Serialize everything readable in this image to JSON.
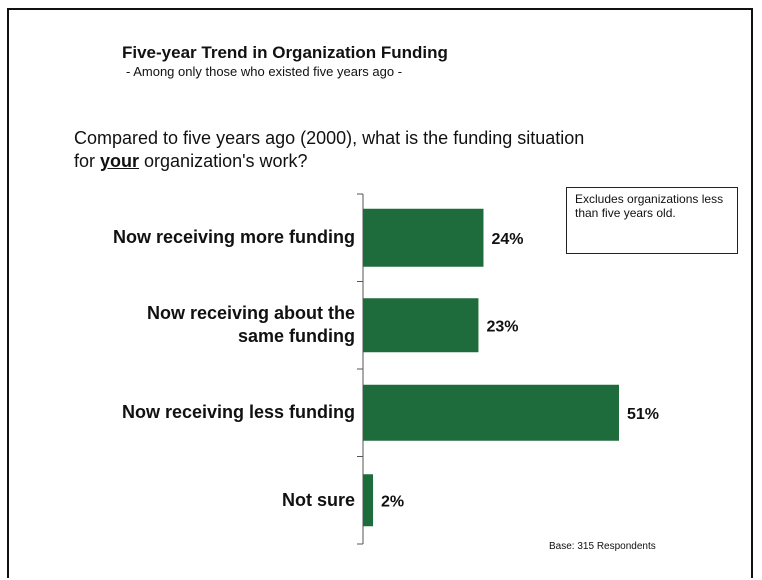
{
  "title": "Five-year Trend in Organization Funding",
  "subtitle": "- Among only those who existed five years ago -",
  "question": {
    "line1": "Compared to five years ago (2000), what is the funding situation",
    "line2_prefix": "for ",
    "line2_emph": "your",
    "line2_suffix": " organization's work?"
  },
  "note": "Excludes organizations less than five years old.",
  "base_note": "Base: 315 Respondents",
  "colors": {
    "bar": "#1e6b3c",
    "axis": "#555555",
    "text": "#111111"
  },
  "chart_data": {
    "type": "bar",
    "orientation": "horizontal",
    "categories": [
      "Now receiving more funding",
      "Now receiving about the same funding",
      "Now receiving less funding",
      "Not sure"
    ],
    "category_lines": [
      [
        "Now receiving more funding"
      ],
      [
        "Now receiving about the",
        "same funding"
      ],
      [
        "Now receiving less funding"
      ],
      [
        "Not sure"
      ]
    ],
    "values": [
      24,
      23,
      51,
      2
    ],
    "value_labels": [
      "24%",
      "23%",
      "51%",
      "2%"
    ],
    "xlim": [
      0,
      51
    ],
    "title": "Five-year Trend in Organization Funding",
    "xlabel": "",
    "ylabel": "",
    "grid": false,
    "legend": "none"
  }
}
